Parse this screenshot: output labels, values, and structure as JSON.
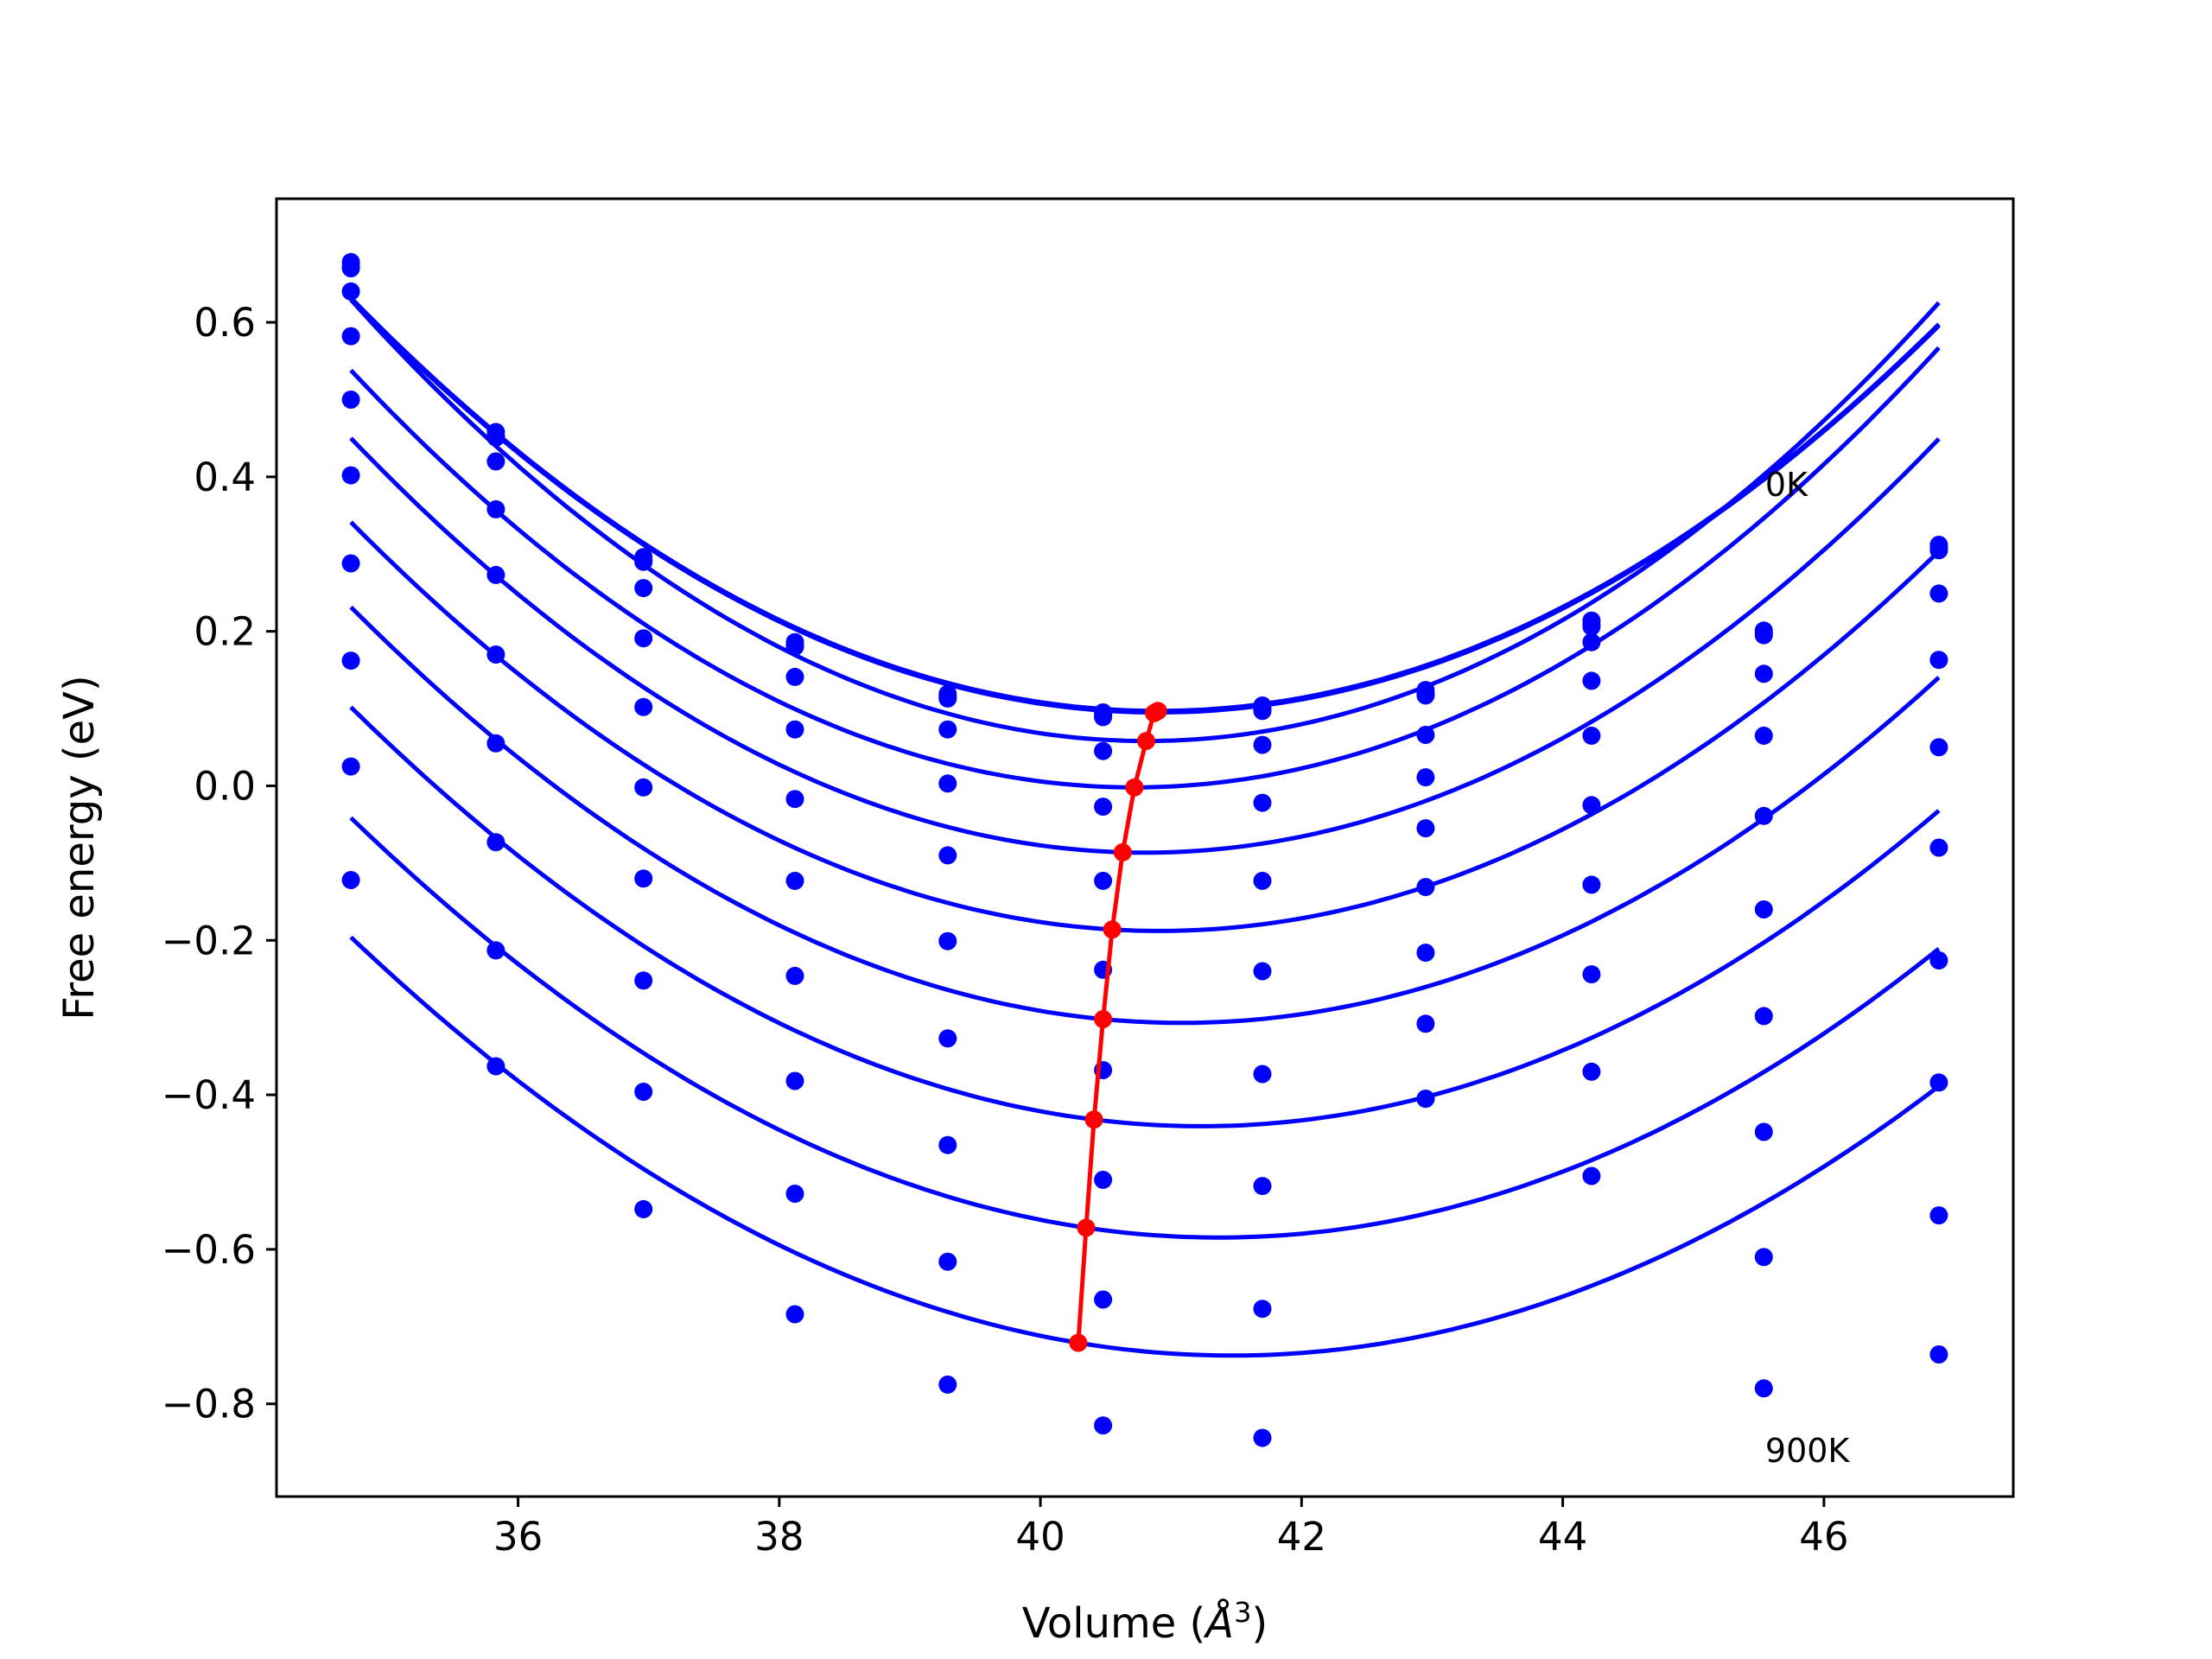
{
  "chart_data": {
    "type": "scatter",
    "title": "",
    "xlabel": "Volume (",
    "xlabel_symbol": "Å",
    "xlabel_exponent": "3",
    "xlabel_close": ")",
    "ylabel": "Free energy (eV)",
    "xlim": [
      34.15,
      47.45
    ],
    "ylim": [
      -0.92,
      0.76
    ],
    "xticks": [
      36,
      38,
      40,
      42,
      44,
      46
    ],
    "xtick_labels": [
      "36",
      "38",
      "40",
      "42",
      "44",
      "46"
    ],
    "yticks": [
      0.6,
      0.4,
      0.2,
      0.0,
      -0.2,
      -0.4,
      -0.6,
      -0.8
    ],
    "ytick_labels": [
      "0.6",
      "0.4",
      "0.2",
      "0.0",
      "−0.2",
      "−0.4",
      "−0.6",
      "−0.8"
    ],
    "grid": false,
    "volumes": [
      34.72,
      35.83,
      36.96,
      38.12,
      39.29,
      40.48,
      41.7,
      42.95,
      44.22,
      45.54,
      46.88
    ],
    "series": [
      {
        "values": [
          0.678,
          0.458,
          0.296,
          0.186,
          0.119,
          0.095,
          0.104,
          0.124,
          0.214,
          0.201,
          0.312
        ]
      },
      {
        "values": [
          0.672,
          0.453,
          0.292,
          0.182,
          0.115,
          0.091,
          0.099,
          0.12,
          0.209,
          0.197,
          0.308
        ]
      },
      {
        "values": [
          0.67,
          0.451,
          0.29,
          0.18,
          0.113,
          0.089,
          0.097,
          0.117,
          0.206,
          0.195,
          0.305
        ]
      },
      {
        "values": [
          0.64,
          0.42,
          0.256,
          0.141,
          0.073,
          0.045,
          0.053,
          0.066,
          0.186,
          0.145,
          0.249
        ]
      },
      {
        "values": [
          0.582,
          0.358,
          0.191,
          0.073,
          0.003,
          -0.027,
          -0.022,
          0.011,
          0.136,
          0.065,
          0.163
        ]
      },
      {
        "values": [
          0.5,
          0.273,
          0.102,
          -0.017,
          -0.09,
          -0.123,
          -0.123,
          -0.055,
          0.065,
          -0.039,
          0.05
        ]
      },
      {
        "values": [
          0.402,
          0.17,
          -0.002,
          -0.123,
          -0.201,
          -0.238,
          -0.24,
          -0.131,
          -0.025,
          -0.16,
          -0.08
        ]
      },
      {
        "values": [
          0.288,
          0.055,
          -0.12,
          -0.246,
          -0.327,
          -0.368,
          -0.373,
          -0.216,
          -0.128,
          -0.298,
          -0.226
        ]
      },
      {
        "values": [
          0.162,
          -0.073,
          -0.252,
          -0.382,
          -0.465,
          -0.51,
          -0.518,
          -0.308,
          -0.244,
          -0.448,
          -0.384
        ]
      },
      {
        "values": [
          0.025,
          -0.213,
          -0.396,
          -0.528,
          -0.616,
          -0.665,
          -0.677,
          -0.405,
          -0.37,
          -0.61,
          -0.556
        ]
      },
      {
        "values": [
          -0.122,
          -0.363,
          -0.548,
          -0.684,
          -0.775,
          -0.828,
          -0.844,
          -0.405,
          -0.505,
          -0.78,
          -0.736
        ]
      }
    ],
    "fits": [
      {
        "v0": 40.9,
        "e0": 0.097,
        "k": 0.014,
        "b": 0.0
      },
      {
        "v0": 40.9,
        "e0": 0.096,
        "k": 0.014,
        "b": 0.0
      },
      {
        "v0": 40.9,
        "e0": 0.095,
        "k": 0.014,
        "b": 0.0
      },
      {
        "v0": 40.81,
        "e0": 0.058,
        "k": 0.0154,
        "b": 0.0
      },
      {
        "v0": 40.72,
        "e0": -0.002,
        "k": 0.015,
        "b": 0.0
      },
      {
        "v0": 40.63,
        "e0": -0.086,
        "k": 0.0145,
        "b": 0.005
      },
      {
        "v0": 40.55,
        "e0": -0.186,
        "k": 0.0138,
        "b": 0.01
      },
      {
        "v0": 40.48,
        "e0": -0.302,
        "k": 0.0133,
        "b": 0.016
      },
      {
        "v0": 40.41,
        "e0": -0.432,
        "k": 0.0128,
        "b": 0.021
      },
      {
        "v0": 40.35,
        "e0": -0.572,
        "k": 0.0123,
        "b": 0.025
      },
      {
        "v0": 40.29,
        "e0": -0.721,
        "k": 0.0119,
        "b": 0.028
      }
    ],
    "equilibrium_curve": {
      "x": [
        40.29,
        40.35,
        40.41,
        40.48,
        40.55,
        40.63,
        40.72,
        40.81,
        40.87,
        40.89,
        40.9
      ],
      "y": [
        -0.721,
        -0.572,
        -0.432,
        -0.302,
        -0.186,
        -0.086,
        -0.002,
        0.058,
        0.094,
        0.096,
        0.097
      ]
    },
    "colors": {
      "points": "#0000ff",
      "fits": "#0000ff",
      "equilibrium": "#ff0000",
      "axes": "#000000"
    },
    "annotations": [
      {
        "text": "0K",
        "x": 45.55,
        "y": 0.375
      },
      {
        "text": "900K",
        "x": 45.55,
        "y": -0.875
      }
    ]
  }
}
